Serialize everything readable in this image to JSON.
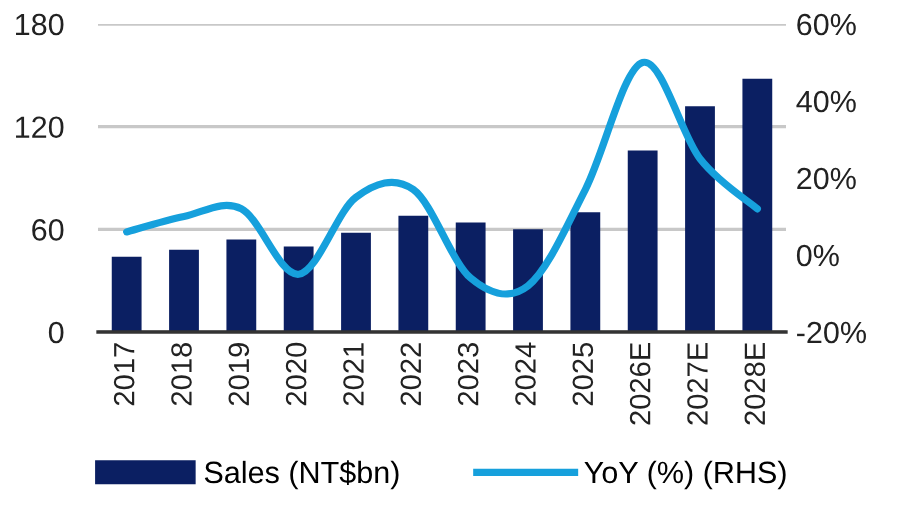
{
  "chart_data": {
    "type": "bar",
    "categories": [
      "2017",
      "2018",
      "2019",
      "2020",
      "2021",
      "2022",
      "2023",
      "2024",
      "2025",
      "2026E",
      "2027E",
      "2028E"
    ],
    "series": [
      {
        "name": "Sales (NT$bn)",
        "color": "#0b1f62",
        "values": [
          44,
          48,
          54,
          50,
          58,
          68,
          64,
          60,
          70,
          106,
          132,
          148
        ]
      },
      {
        "name": "YoY (%) (RHS)",
        "type": "line",
        "axis": "y2",
        "color": "#16a0dc",
        "values": [
          6,
          10,
          12,
          -5,
          15,
          17,
          -6,
          -8,
          17,
          50,
          25,
          12
        ]
      }
    ],
    "ylim": [
      0,
      180
    ],
    "yticks": [
      0,
      60,
      120,
      180
    ],
    "y2lim": [
      -20,
      60
    ],
    "y2ticks": [
      {
        "value": -20,
        "label": "-20%"
      },
      {
        "value": 0,
        "label": "0%"
      },
      {
        "value": 20,
        "label": "20%"
      },
      {
        "value": 40,
        "label": "40%"
      },
      {
        "value": 60,
        "label": "60%"
      }
    ],
    "grid": "y",
    "legend": "bottom",
    "marker": "none",
    "line_style": "solid"
  }
}
